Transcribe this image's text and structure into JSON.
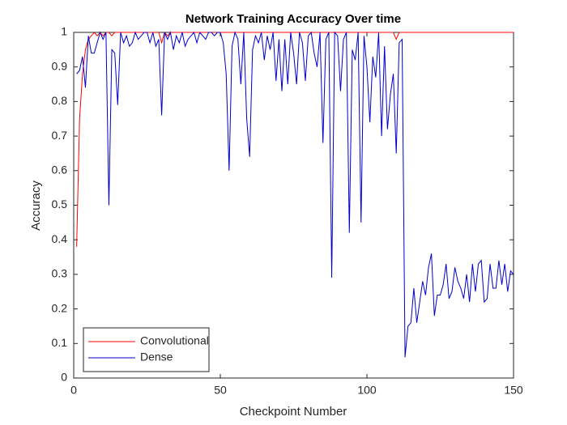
{
  "chart_data": {
    "type": "line",
    "title": "Network Training Accuracy Over time",
    "x_label": "Checkpoint Number",
    "y_label": "Accuracy",
    "xlim": [
      0,
      150
    ],
    "ylim": [
      0,
      1
    ],
    "xticks": [
      0,
      50,
      100,
      150
    ],
    "yticks": [
      0,
      0.1,
      0.2,
      0.3,
      0.4,
      0.5,
      0.6,
      0.7,
      0.8,
      0.9,
      1
    ],
    "grid": false,
    "legend": "southwest",
    "x": [
      1,
      2,
      3,
      4,
      5,
      6,
      7,
      8,
      9,
      10,
      11,
      12,
      13,
      14,
      15,
      16,
      17,
      18,
      19,
      20,
      21,
      22,
      23,
      24,
      25,
      26,
      27,
      28,
      29,
      30,
      31,
      32,
      33,
      34,
      35,
      36,
      37,
      38,
      39,
      40,
      41,
      42,
      43,
      44,
      45,
      46,
      47,
      48,
      49,
      50,
      51,
      52,
      53,
      54,
      55,
      56,
      57,
      58,
      59,
      60,
      61,
      62,
      63,
      64,
      65,
      66,
      67,
      68,
      69,
      70,
      71,
      72,
      73,
      74,
      75,
      76,
      77,
      78,
      79,
      80,
      81,
      82,
      83,
      84,
      85,
      86,
      87,
      88,
      89,
      90,
      91,
      92,
      93,
      94,
      95,
      96,
      97,
      98,
      99,
      100,
      101,
      102,
      103,
      104,
      105,
      106,
      107,
      108,
      109,
      110,
      111,
      112,
      113,
      114,
      115,
      116,
      117,
      118,
      119,
      120,
      121,
      122,
      123,
      124,
      125,
      126,
      127,
      128,
      129,
      130,
      131,
      132,
      133,
      134,
      135,
      136,
      137,
      138,
      139,
      140,
      141,
      142,
      143,
      144,
      145,
      146,
      147,
      148,
      149,
      150
    ],
    "series": [
      {
        "name": "Convolutional",
        "color": "#ff0000",
        "values": [
          0.38,
          0.75,
          0.88,
          0.95,
          0.98,
          0.99,
          1,
          0.99,
          1,
          0.99,
          1,
          1,
          0.99,
          1,
          1,
          1,
          1,
          1,
          1,
          1,
          1,
          1,
          1,
          1,
          1,
          1,
          1,
          1,
          1,
          0.97,
          1,
          0.99,
          1,
          1,
          1,
          1,
          1,
          1,
          1,
          1,
          1,
          1,
          1,
          1,
          1,
          1,
          1,
          1,
          1,
          1,
          1,
          1,
          1,
          1,
          1,
          1,
          1,
          1,
          1,
          1,
          1,
          1,
          1,
          1,
          1,
          1,
          1,
          1,
          1,
          1,
          1,
          1,
          1,
          1,
          1,
          1,
          1,
          1,
          1,
          1,
          1,
          1,
          1,
          1,
          1,
          1,
          1,
          1,
          1,
          1,
          1,
          1,
          1,
          1,
          1,
          1,
          1,
          1,
          1,
          1,
          1,
          1,
          1,
          1,
          1,
          1,
          1,
          1,
          1,
          0.98,
          1,
          1,
          1,
          1,
          1,
          1,
          1,
          1,
          1,
          1,
          1,
          1,
          1,
          1,
          1,
          1,
          1,
          1,
          1,
          1,
          1,
          1,
          1,
          1,
          1,
          1,
          1,
          1,
          1,
          1,
          1,
          1,
          1,
          1,
          1,
          1,
          1,
          1,
          1,
          1
        ]
      },
      {
        "name": "Dense",
        "color": "#0000cc",
        "values": [
          0.88,
          0.89,
          0.93,
          0.84,
          0.99,
          0.94,
          0.94,
          0.97,
          1,
          0.98,
          1,
          0.5,
          0.95,
          0.94,
          0.79,
          1,
          0.97,
          0.99,
          0.96,
          0.97,
          1,
          0.98,
          0.99,
          1,
          1,
          0.97,
          1,
          0.96,
          0.98,
          0.76,
          1,
          0.98,
          1,
          0.95,
          0.99,
          0.97,
          1,
          0.96,
          0.98,
          0.99,
          1,
          0.97,
          1,
          0.99,
          0.98,
          1,
          1,
          0.99,
          1,
          1,
          0.97,
          0.88,
          0.6,
          0.96,
          1,
          0.98,
          0.85,
          1,
          0.75,
          0.64,
          0.95,
          0.99,
          0.97,
          1,
          0.92,
          0.99,
          0.95,
          1,
          0.86,
          0.98,
          0.83,
          0.98,
          0.85,
          1,
          0.94,
          0.85,
          1,
          0.97,
          0.86,
          0.99,
          1,
          0.94,
          0.9,
          1,
          0.68,
          0.98,
          1,
          0.29,
          1,
          0.99,
          0.83,
          0.98,
          1,
          0.42,
          0.95,
          0.92,
          1,
          0.45,
          0.99,
          0.9,
          0.74,
          0.93,
          0.87,
          1,
          0.7,
          0.96,
          0.72,
          0.82,
          0.88,
          0.65,
          0.97,
          0.98,
          0.06,
          0.15,
          0.16,
          0.26,
          0.16,
          0.22,
          0.28,
          0.24,
          0.32,
          0.36,
          0.18,
          0.24,
          0.24,
          0.27,
          0.33,
          0.23,
          0.25,
          0.32,
          0.28,
          0.26,
          0.23,
          0.3,
          0.22,
          0.33,
          0.25,
          0.33,
          0.34,
          0.22,
          0.23,
          0.33,
          0.26,
          0.26,
          0.34,
          0.27,
          0.33,
          0.25,
          0.31,
          0.3
        ]
      }
    ]
  }
}
